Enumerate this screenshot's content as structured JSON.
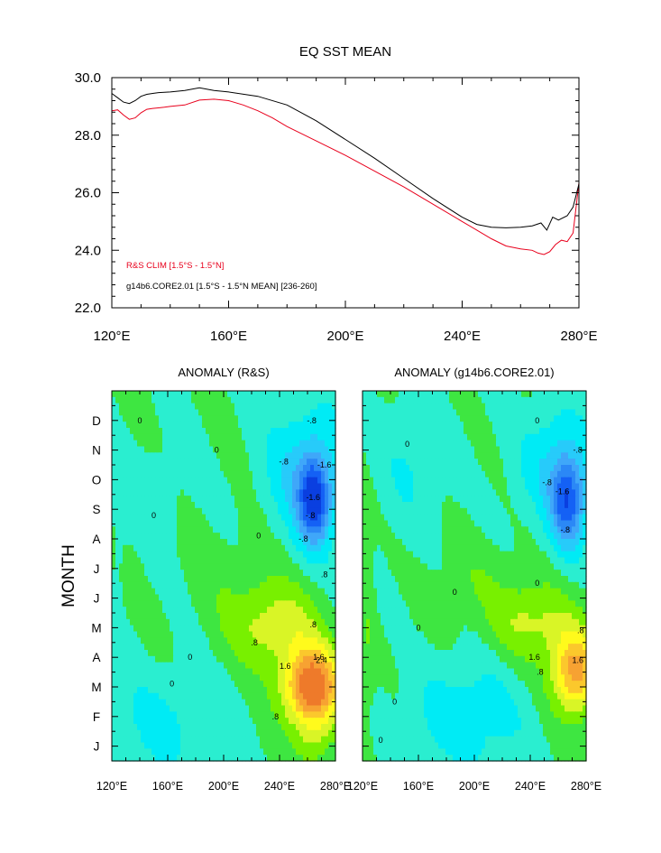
{
  "chart_data": [
    {
      "type": "line",
      "title": "EQ SST MEAN",
      "xlim": [
        120,
        280
      ],
      "ylim": [
        22,
        30
      ],
      "xticks": [
        {
          "v": 120,
          "label": "120°E"
        },
        {
          "v": 160,
          "label": "160°E"
        },
        {
          "v": 200,
          "label": "200°E"
        },
        {
          "v": 240,
          "label": "240°E"
        },
        {
          "v": 280,
          "label": "280°E"
        }
      ],
      "yticks": [
        {
          "v": 22,
          "label": "22.0"
        },
        {
          "v": 24,
          "label": "24.0"
        },
        {
          "v": 26,
          "label": "26.0"
        },
        {
          "v": 28,
          "label": "28.0"
        },
        {
          "v": 30,
          "label": "30.0"
        }
      ],
      "grid": false,
      "legend_position": "bottom-left",
      "series": [
        {
          "name": "R&S CLIM [1.5°S - 1.5°N]",
          "color": "#e8001c",
          "x": [
            120,
            122,
            124,
            126,
            128,
            130,
            132,
            134,
            136,
            138,
            140,
            145,
            150,
            155,
            160,
            165,
            170,
            175,
            180,
            190,
            200,
            210,
            220,
            230,
            240,
            245,
            250,
            255,
            260,
            264,
            266,
            268,
            270,
            272,
            274,
            276,
            278,
            280
          ],
          "y": [
            28.85,
            28.88,
            28.7,
            28.55,
            28.6,
            28.78,
            28.9,
            28.93,
            28.95,
            28.97,
            29.0,
            29.05,
            29.22,
            29.25,
            29.2,
            29.05,
            28.85,
            28.6,
            28.3,
            27.8,
            27.3,
            26.75,
            26.2,
            25.6,
            25.0,
            24.7,
            24.4,
            24.15,
            24.05,
            24.0,
            23.9,
            23.85,
            23.95,
            24.2,
            24.35,
            24.3,
            24.6,
            26.35
          ]
        },
        {
          "name": "g14b6.CORE2.01 [1.5°S - 1.5°N MEAN] [236-260]",
          "color": "#000000",
          "x": [
            120,
            122,
            124,
            126,
            128,
            130,
            132,
            134,
            136,
            140,
            145,
            150,
            155,
            160,
            170,
            180,
            190,
            200,
            210,
            220,
            230,
            240,
            245,
            250,
            255,
            260,
            264,
            267,
            269,
            271,
            273,
            276,
            278,
            280
          ],
          "y": [
            29.45,
            29.3,
            29.15,
            29.1,
            29.2,
            29.35,
            29.42,
            29.45,
            29.48,
            29.5,
            29.55,
            29.65,
            29.55,
            29.5,
            29.35,
            29.05,
            28.5,
            27.85,
            27.2,
            26.5,
            25.8,
            25.15,
            24.9,
            24.8,
            24.78,
            24.8,
            24.85,
            24.95,
            24.7,
            25.15,
            25.05,
            25.2,
            25.5,
            26.3
          ]
        }
      ]
    },
    {
      "type": "heatmap",
      "title": "ANOMALY (R&S)",
      "xlim": [
        120,
        280
      ],
      "xticks": [
        {
          "v": 120,
          "label": "120°E"
        },
        {
          "v": 160,
          "label": "160°E"
        },
        {
          "v": 200,
          "label": "200°E"
        },
        {
          "v": 240,
          "label": "240°E"
        },
        {
          "v": 280,
          "label": "280°E"
        }
      ],
      "ylabel": "MONTH",
      "yticks": [
        "J",
        "F",
        "M",
        "A",
        "M",
        "J",
        "J",
        "A",
        "S",
        "O",
        "N",
        "D"
      ],
      "anomaly_centers": [
        {
          "lon": 264,
          "month_index": 2,
          "value": 2.6
        },
        {
          "lon": 265,
          "month_index": 8,
          "value": -2.0
        }
      ],
      "contour_labels": [
        {
          "lon": 244,
          "month_index": 2.7,
          "text": "1.6"
        },
        {
          "lon": 270,
          "month_index": 2.9,
          "text": "2.4"
        },
        {
          "lon": 268,
          "month_index": 3.0,
          "text": "1.6"
        },
        {
          "lon": 264,
          "month_index": 4.1,
          "text": ".8"
        },
        {
          "lon": 222,
          "month_index": 3.5,
          "text": ".8"
        },
        {
          "lon": 237,
          "month_index": 1.0,
          "text": ".8"
        },
        {
          "lon": 262,
          "month_index": 7.8,
          "text": "-.8"
        },
        {
          "lon": 264,
          "month_index": 8.4,
          "text": "-1.6"
        },
        {
          "lon": 272,
          "month_index": 9.5,
          "text": "-1.6"
        },
        {
          "lon": 243,
          "month_index": 9.6,
          "text": "-.8"
        },
        {
          "lon": 263,
          "month_index": 11.0,
          "text": "-.8"
        },
        {
          "lon": 257,
          "month_index": 7.0,
          "text": "-.8"
        },
        {
          "lon": 272,
          "month_index": 5.8,
          "text": ".8"
        },
        {
          "lon": 163,
          "month_index": 2.1,
          "text": "0"
        },
        {
          "lon": 176,
          "month_index": 3.0,
          "text": "0"
        },
        {
          "lon": 195,
          "month_index": 10.0,
          "text": "0"
        },
        {
          "lon": 150,
          "month_index": 7.8,
          "text": "0"
        },
        {
          "lon": 140,
          "month_index": 11.0,
          "text": "0"
        },
        {
          "lon": 225,
          "month_index": 7.1,
          "text": "0"
        }
      ]
    },
    {
      "type": "heatmap",
      "title": "ANOMALY (g14b6.CORE2.01)",
      "xlim": [
        120,
        280
      ],
      "xticks": [
        {
          "v": 120,
          "label": "120°E"
        },
        {
          "v": 160,
          "label": "160°E"
        },
        {
          "v": 200,
          "label": "200°E"
        },
        {
          "v": 240,
          "label": "240°E"
        },
        {
          "v": 280,
          "label": "280°E"
        }
      ],
      "anomaly_centers": [
        {
          "lon": 273,
          "month_index": 2,
          "value": 2.0
        },
        {
          "lon": 267,
          "month_index": 8,
          "value": -1.8
        }
      ],
      "contour_labels": [
        {
          "lon": 243,
          "month_index": 3.0,
          "text": "1.6"
        },
        {
          "lon": 274,
          "month_index": 2.9,
          "text": "1.6"
        },
        {
          "lon": 276,
          "month_index": 3.9,
          "text": ".8"
        },
        {
          "lon": 247,
          "month_index": 2.5,
          "text": ".8"
        },
        {
          "lon": 263,
          "month_index": 8.6,
          "text": "-1.6"
        },
        {
          "lon": 252,
          "month_index": 8.9,
          "text": "-.8"
        },
        {
          "lon": 274,
          "month_index": 10.0,
          "text": "-.8"
        },
        {
          "lon": 265,
          "month_index": 7.3,
          "text": "-.8"
        },
        {
          "lon": 152,
          "month_index": 10.2,
          "text": "0"
        },
        {
          "lon": 160,
          "month_index": 4.0,
          "text": "0"
        },
        {
          "lon": 186,
          "month_index": 5.2,
          "text": "0"
        },
        {
          "lon": 245,
          "month_index": 5.5,
          "text": "0"
        },
        {
          "lon": 143,
          "month_index": 1.5,
          "text": "0"
        },
        {
          "lon": 133,
          "month_index": 0.2,
          "text": "0"
        },
        {
          "lon": 245,
          "month_index": 11.0,
          "text": "0"
        }
      ]
    }
  ],
  "colors": {
    "levels": [
      -2.4,
      -2.0,
      -1.6,
      -1.2,
      -0.8,
      -0.4,
      0,
      0.4,
      0.8,
      1.2,
      1.6,
      2.0,
      2.4
    ],
    "fills": [
      "#0a3fe0",
      "#1461f5",
      "#2b88f6",
      "#3fa7f9",
      "#27cbfa",
      "#00ebf5",
      "#2aeed0",
      "#3ee641",
      "#78f000",
      "#d9f526",
      "#fffa1c",
      "#fbc82c",
      "#f7a232",
      "#ee7a2a",
      "#e64b1e"
    ]
  }
}
